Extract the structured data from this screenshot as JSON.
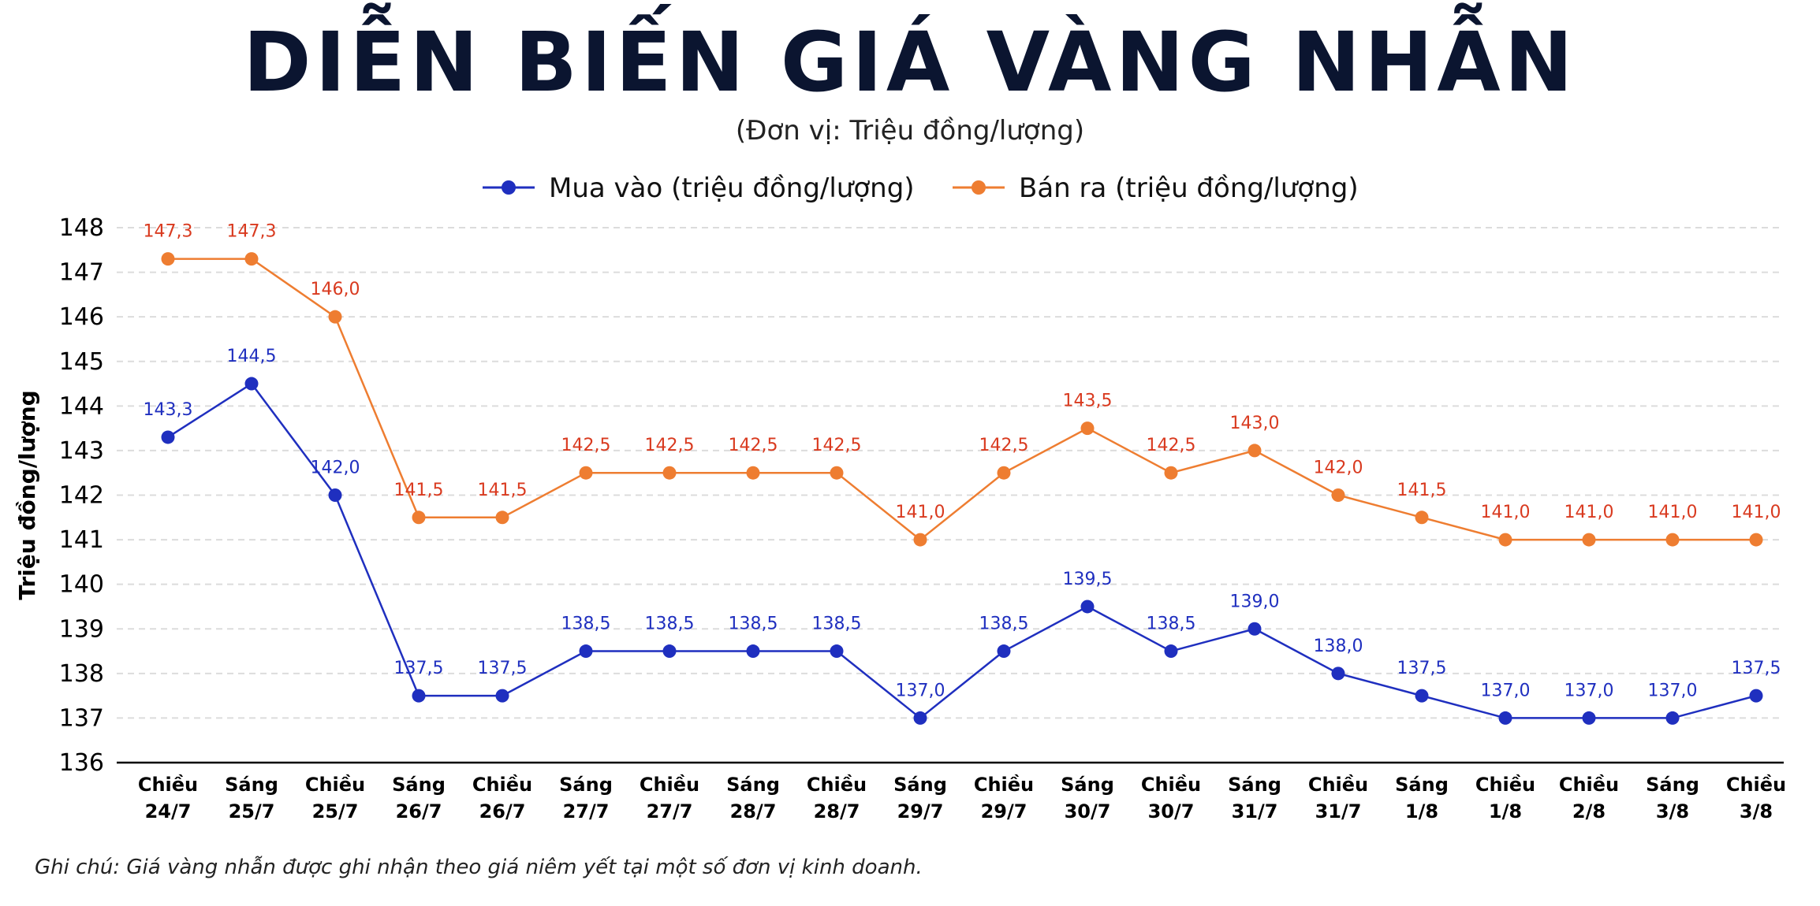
{
  "title": "DIỄN BIẾN GIÁ VÀNG NHẪN",
  "subtitle": "(Đơn vị: Triệu đồng/lượng)",
  "footnote": "Ghi chú: Giá vàng nhẫn được ghi nhận theo giá niêm yết tại một số đơn vị kinh doanh.",
  "chart_data": {
    "type": "line",
    "title": "DIỄN BIẾN GIÁ VÀNG NHẪN",
    "ylabel": "Triệu đồng/lượng",
    "xlabel": "",
    "ylim": [
      136,
      148
    ],
    "yticks": [
      136,
      137,
      138,
      139,
      140,
      141,
      142,
      143,
      144,
      145,
      146,
      147,
      148
    ],
    "grid": true,
    "legend_position": "top",
    "categories": [
      [
        "Chiều",
        "24/7"
      ],
      [
        "Sáng",
        "25/7"
      ],
      [
        "Chiều",
        "25/7"
      ],
      [
        "Sáng",
        "26/7"
      ],
      [
        "Chiều",
        "26/7"
      ],
      [
        "Sáng",
        "27/7"
      ],
      [
        "Chiều",
        "27/7"
      ],
      [
        "Sáng",
        "28/7"
      ],
      [
        "Chiều",
        "28/7"
      ],
      [
        "Sáng",
        "29/7"
      ],
      [
        "Chiều",
        "29/7"
      ],
      [
        "Sáng",
        "30/7"
      ],
      [
        "Chiều",
        "30/7"
      ],
      [
        "Sáng",
        "31/7"
      ],
      [
        "Chiều",
        "31/7"
      ],
      [
        "Sáng",
        "1/8"
      ],
      [
        "Chiều",
        "1/8"
      ],
      [
        "Chiều",
        "2/8"
      ],
      [
        "Sáng",
        "3/8"
      ],
      [
        "Chiều",
        "3/8"
      ]
    ],
    "series": [
      {
        "name": "Mua vào (triệu đồng/lượng)",
        "color": "#1f2fbf",
        "label_color": "#1f2fbf",
        "values": [
          143.3,
          144.5,
          142.0,
          137.5,
          137.5,
          138.5,
          138.5,
          138.5,
          138.5,
          137.0,
          138.5,
          139.5,
          138.5,
          139.0,
          138.0,
          137.5,
          137.0,
          137.0,
          137.0,
          137.5
        ],
        "labels": [
          "143,3",
          "144,5",
          "142,0",
          "137,5",
          "137,5",
          "138,5",
          "138,5",
          "138,5",
          "138,5",
          "137,0",
          "138,5",
          "139,5",
          "138,5",
          "139,0",
          "138,0",
          "137,5",
          "137,0",
          "137,0",
          "137,0",
          "137,5"
        ]
      },
      {
        "name": "Bán ra (triệu đồng/lượng)",
        "color": "#ee7d31",
        "label_color": "#d93a1f",
        "values": [
          147.3,
          147.3,
          146.0,
          141.5,
          141.5,
          142.5,
          142.5,
          142.5,
          142.5,
          141.0,
          142.5,
          143.5,
          142.5,
          143.0,
          142.0,
          141.5,
          141.0,
          141.0,
          141.0,
          141.0
        ],
        "labels": [
          "147,3",
          "147,3",
          "146,0",
          "141,5",
          "141,5",
          "142,5",
          "142,5",
          "142,5",
          "142,5",
          "141,0",
          "142,5",
          "143,5",
          "142,5",
          "143,0",
          "142,0",
          "141,5",
          "141,0",
          "141,0",
          "141,0",
          "141,0"
        ]
      }
    ]
  }
}
